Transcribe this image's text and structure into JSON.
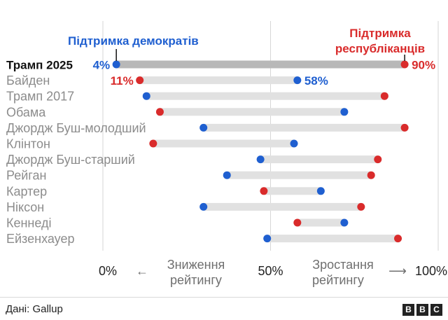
{
  "chart_data": {
    "type": "dumbbell",
    "legend": {
      "democrats": "Підтримка демократів",
      "republicans_line1": "Підтримка",
      "republicans_line2": "республіканців"
    },
    "xlim": [
      0,
      100
    ],
    "x_ticks": [
      "0%",
      "50%",
      "100%"
    ],
    "x_tick_values": [
      0,
      50,
      100
    ],
    "annotations": {
      "decrease_line1": "Зниження",
      "decrease_line2": "рейтингу",
      "increase_line1": "Зростання",
      "increase_line2": "рейтингу",
      "left_arrow": "←",
      "right_arrow": "⟶"
    },
    "rows": [
      {
        "label": "Трамп 2025",
        "dem": 4,
        "rep": 90,
        "dem_label": "4%",
        "rep_label": "90%",
        "highlight": true
      },
      {
        "label": "Байден",
        "dem": 58,
        "rep": 11,
        "dem_label": "58%",
        "rep_label": "11%",
        "highlight": false
      },
      {
        "label": "Трамп 2017",
        "dem": 13,
        "rep": 84,
        "highlight": false
      },
      {
        "label": "Обама",
        "dem": 72,
        "rep": 17,
        "highlight": false
      },
      {
        "label": "Джордж Буш-молодший",
        "dem": 30,
        "rep": 90,
        "highlight": false
      },
      {
        "label": "Клінтон",
        "dem": 57,
        "rep": 15,
        "highlight": false
      },
      {
        "label": "Джордж Буш-старший",
        "dem": 47,
        "rep": 82,
        "highlight": false
      },
      {
        "label": "Рейган",
        "dem": 37,
        "rep": 80,
        "highlight": false
      },
      {
        "label": "Картер",
        "dem": 65,
        "rep": 48,
        "highlight": false
      },
      {
        "label": "Ніксон",
        "dem": 30,
        "rep": 77,
        "highlight": false
      },
      {
        "label": "Кеннеді",
        "dem": 72,
        "rep": 58,
        "highlight": false
      },
      {
        "label": "Ейзенхауер",
        "dem": 49,
        "rep": 88,
        "highlight": false
      }
    ]
  },
  "colors": {
    "democrat": "#1f5fd0",
    "republican": "#d92b2b",
    "bar": "#e1e1e1",
    "bar_highlight": "#b8b8b8",
    "grid": "#d6d6d6",
    "label": "#8c8c8c",
    "label_highlight": "#111111",
    "annotation": "#6f6f6f"
  },
  "footer": {
    "source": "Дані: Gallup",
    "logo_letters": [
      "B",
      "B",
      "C"
    ]
  }
}
